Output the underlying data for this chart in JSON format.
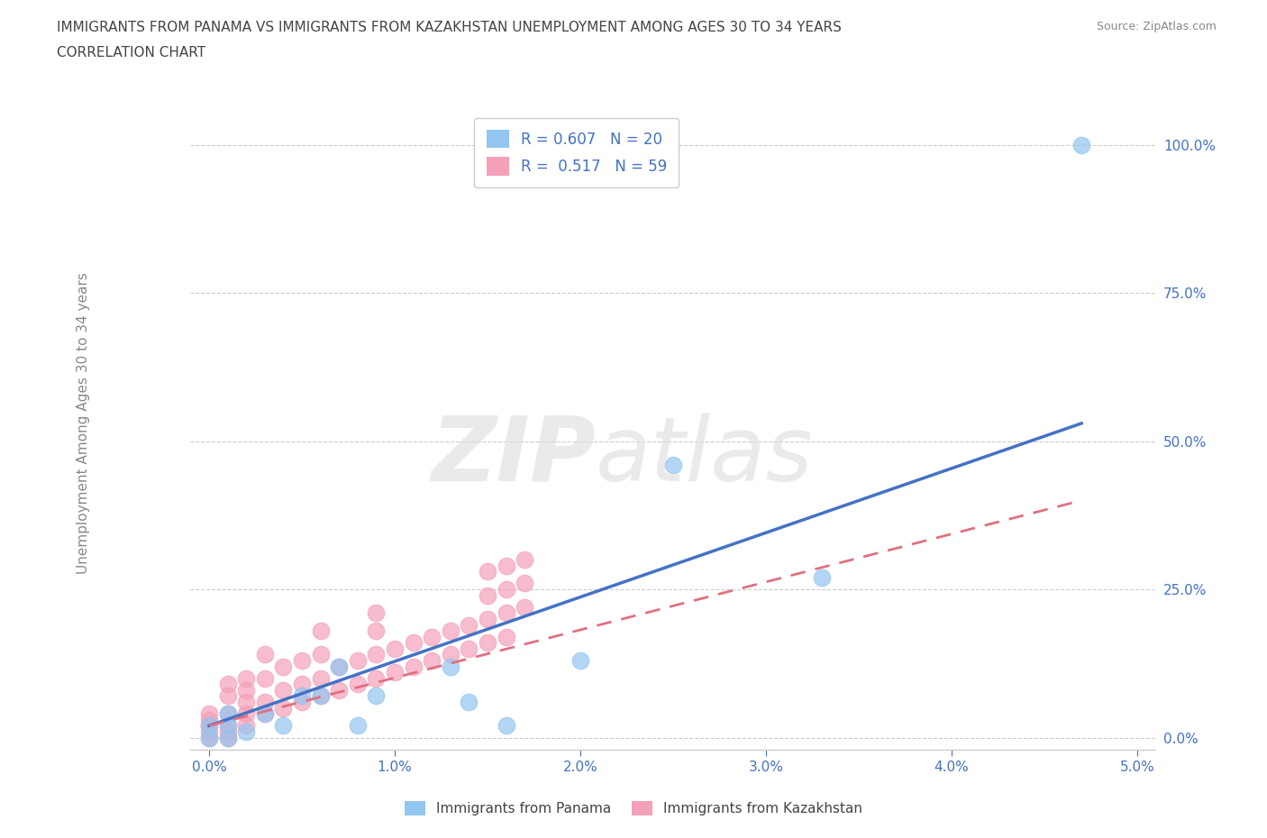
{
  "title_line1": "IMMIGRANTS FROM PANAMA VS IMMIGRANTS FROM KAZAKHSTAN UNEMPLOYMENT AMONG AGES 30 TO 34 YEARS",
  "title_line2": "CORRELATION CHART",
  "source_text": "Source: ZipAtlas.com",
  "ylabel": "Unemployment Among Ages 30 to 34 years",
  "xlim": [
    -0.001,
    0.051
  ],
  "ylim": [
    -0.02,
    1.08
  ],
  "xticks": [
    0.0,
    0.01,
    0.02,
    0.03,
    0.04,
    0.05
  ],
  "xtick_labels": [
    "0.0%",
    "1.0%",
    "2.0%",
    "3.0%",
    "4.0%",
    "5.0%"
  ],
  "yticks": [
    0.0,
    0.25,
    0.5,
    0.75,
    1.0
  ],
  "ytick_labels": [
    "0.0%",
    "25.0%",
    "50.0%",
    "75.0%",
    "100.0%"
  ],
  "legend_r1": "R = 0.607",
  "legend_n1": "N = 20",
  "legend_r2": "R = 0.517",
  "legend_n2": "N = 59",
  "color_panama": "#92C5F0",
  "color_kazakhstan": "#F4A0B8",
  "color_text_blue": "#4472C4",
  "color_trend_panama": "#4472C4",
  "color_trend_kaz": "#E07080",
  "panama_scatter_x": [
    0.0,
    0.0,
    0.001,
    0.001,
    0.001,
    0.002,
    0.003,
    0.004,
    0.005,
    0.006,
    0.007,
    0.008,
    0.009,
    0.013,
    0.014,
    0.016,
    0.02,
    0.025,
    0.033,
    0.047
  ],
  "panama_scatter_y": [
    0.0,
    0.02,
    0.0,
    0.02,
    0.04,
    0.01,
    0.04,
    0.02,
    0.07,
    0.07,
    0.12,
    0.02,
    0.07,
    0.12,
    0.06,
    0.02,
    0.13,
    0.46,
    0.27,
    1.0
  ],
  "panama_trend_x": [
    0.0,
    0.047
  ],
  "panama_trend_y": [
    0.02,
    0.53
  ],
  "kazakhstan_scatter_x": [
    0.0,
    0.0,
    0.0,
    0.0,
    0.0,
    0.001,
    0.001,
    0.001,
    0.001,
    0.001,
    0.001,
    0.002,
    0.002,
    0.002,
    0.002,
    0.002,
    0.003,
    0.003,
    0.003,
    0.003,
    0.004,
    0.004,
    0.004,
    0.005,
    0.005,
    0.005,
    0.006,
    0.006,
    0.006,
    0.006,
    0.007,
    0.007,
    0.008,
    0.008,
    0.009,
    0.009,
    0.009,
    0.009,
    0.01,
    0.01,
    0.011,
    0.011,
    0.012,
    0.012,
    0.013,
    0.013,
    0.014,
    0.014,
    0.015,
    0.015,
    0.015,
    0.015,
    0.016,
    0.016,
    0.016,
    0.016,
    0.017,
    0.017,
    0.017
  ],
  "kazakhstan_scatter_y": [
    0.0,
    0.01,
    0.02,
    0.03,
    0.04,
    0.0,
    0.01,
    0.02,
    0.04,
    0.07,
    0.09,
    0.02,
    0.04,
    0.06,
    0.08,
    0.1,
    0.04,
    0.06,
    0.1,
    0.14,
    0.05,
    0.08,
    0.12,
    0.06,
    0.09,
    0.13,
    0.07,
    0.1,
    0.14,
    0.18,
    0.08,
    0.12,
    0.09,
    0.13,
    0.1,
    0.14,
    0.18,
    0.21,
    0.11,
    0.15,
    0.12,
    0.16,
    0.13,
    0.17,
    0.14,
    0.18,
    0.15,
    0.19,
    0.16,
    0.2,
    0.24,
    0.28,
    0.17,
    0.21,
    0.25,
    0.29,
    0.22,
    0.26,
    0.3
  ],
  "kazakhstan_trend_x": [
    0.0,
    0.047
  ],
  "kazakhstan_trend_y": [
    0.02,
    0.4
  ]
}
